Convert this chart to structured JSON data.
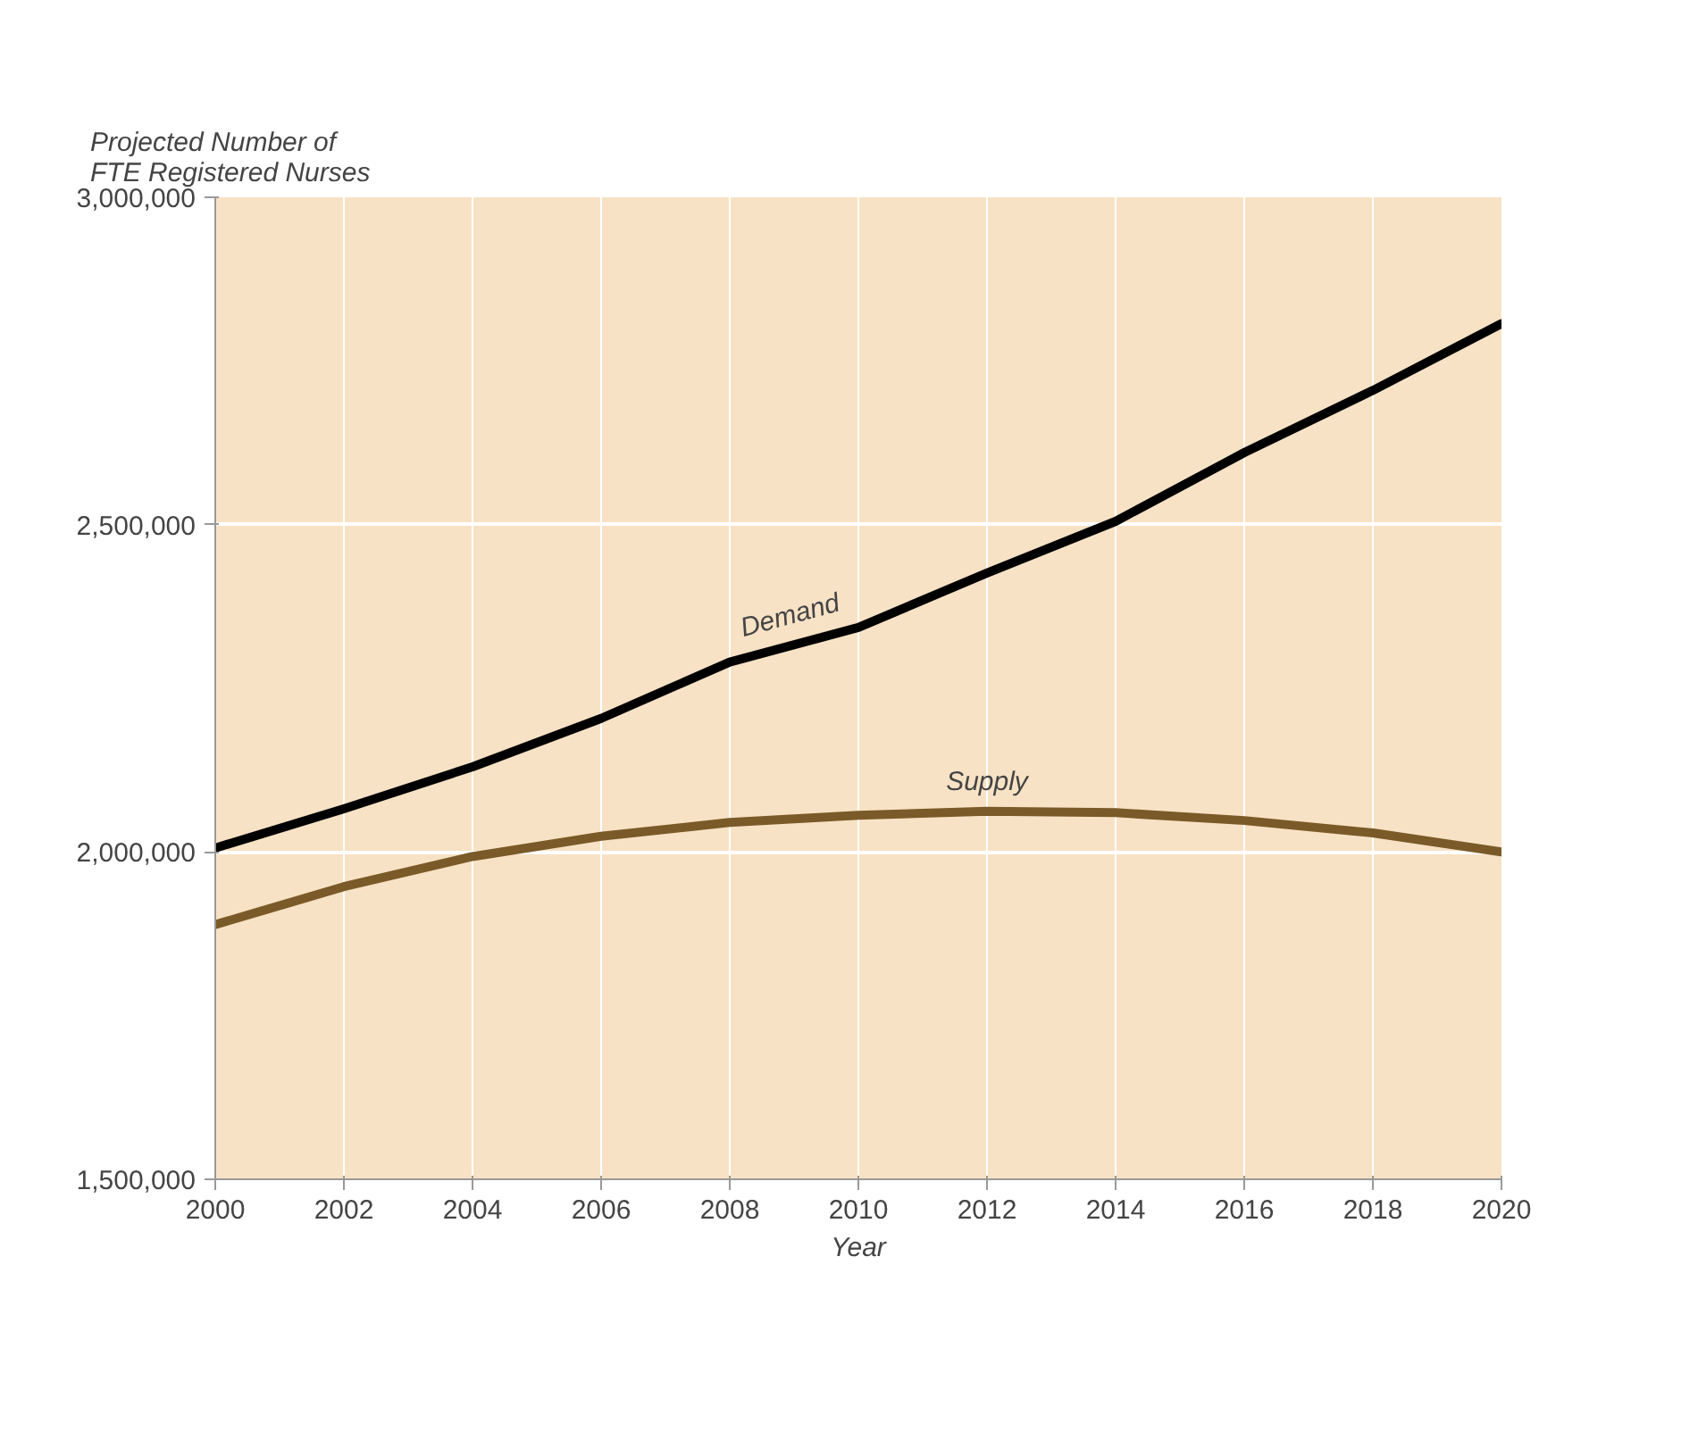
{
  "chart_data": {
    "type": "line",
    "ylabel": "Projected Number of\nFTE Registered Nurses",
    "xlabel": "Year",
    "x": [
      2000,
      2002,
      2004,
      2006,
      2008,
      2010,
      2012,
      2014,
      2016,
      2018,
      2020
    ],
    "series": [
      {
        "name": "Demand",
        "color": "#000000",
        "values": [
          2006000,
          2066000,
          2130000,
          2204000,
          2290000,
          2343000,
          2426000,
          2505000,
          2610000,
          2705000,
          2807000
        ]
      },
      {
        "name": "Supply",
        "color": "#7a5a28",
        "values": [
          1889000,
          1947000,
          1993000,
          2024000,
          2045000,
          2056000,
          2062000,
          2060000,
          2048000,
          2029000,
          2000000
        ]
      }
    ],
    "xlim": [
      2000,
      2020
    ],
    "xticks": [
      2000,
      2002,
      2004,
      2006,
      2008,
      2010,
      2012,
      2014,
      2016,
      2018,
      2020
    ],
    "ylim": [
      1500000,
      3000000
    ],
    "yticks": [
      {
        "value": 1500000,
        "label": "1,500,000"
      },
      {
        "value": 2000000,
        "label": "2,000,000"
      },
      {
        "value": 2500000,
        "label": "2,500,000"
      },
      {
        "value": 3000000,
        "label": "3,000,000"
      }
    ],
    "grid": true,
    "marker": "none",
    "line_style": "solid"
  }
}
